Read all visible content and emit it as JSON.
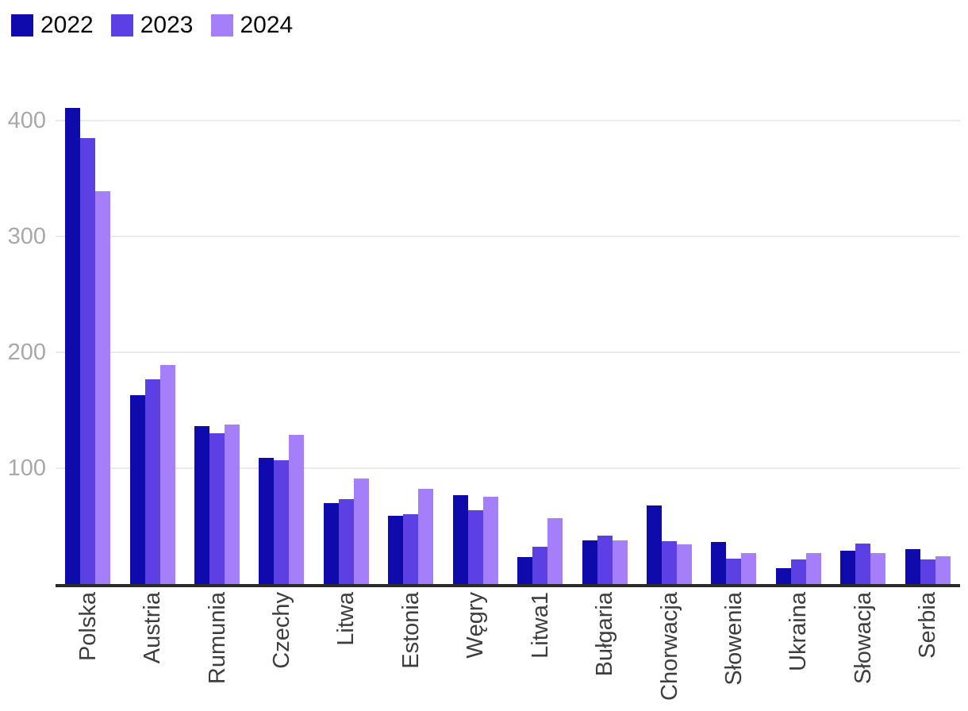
{
  "chart_data": {
    "type": "bar",
    "title": "",
    "categories": [
      "Polska",
      "Austria",
      "Rumunia",
      "Czechy",
      "Litwa",
      "Estonia",
      "Węgry",
      "Litwa1",
      "Bułgaria",
      "Chorwacja",
      "Słowenia",
      "Ukraina",
      "Słowacja",
      "Serbia"
    ],
    "series": [
      {
        "name": "2022",
        "color": "#0E0AAB",
        "values": [
          411,
          163,
          136,
          109,
          70,
          59,
          77,
          23,
          38,
          68,
          36,
          14,
          29,
          30
        ]
      },
      {
        "name": "2023",
        "color": "#5C40E3",
        "values": [
          385,
          177,
          130,
          107,
          73,
          60,
          64,
          32,
          42,
          37,
          22,
          21,
          35,
          21
        ]
      },
      {
        "name": "2024",
        "color": "#A57FF9",
        "values": [
          339,
          189,
          138,
          129,
          91,
          82,
          75,
          57,
          38,
          34,
          27,
          27,
          27,
          24
        ]
      }
    ],
    "xlabel": "",
    "ylabel": "",
    "ylim": [
      0,
      420
    ],
    "y_ticks": [
      100,
      200,
      300,
      400
    ],
    "grid": "horizontal",
    "legend_position": "top-left",
    "x_tick_rotation_deg": -90
  },
  "colors": {
    "background": "#ffffff",
    "gridline": "#e9e9e9",
    "axis_line": "#2b2b2b",
    "y_tick_label": "#a8a8a8",
    "x_tick_label": "#3e3e3e",
    "legend_text": "#0a0a0a"
  }
}
